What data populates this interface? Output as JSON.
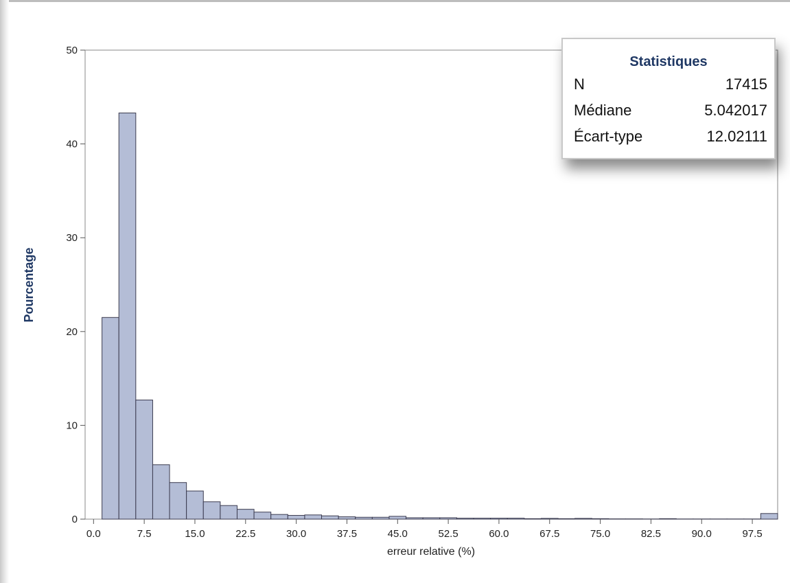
{
  "chart_data": {
    "type": "bar",
    "xlabel": "erreur relative (%)",
    "ylabel": "Pourcentage",
    "ylim": [
      0,
      50
    ],
    "xlim": [
      -1.25,
      101.25
    ],
    "yticks": [
      "0",
      "10",
      "20",
      "30",
      "40",
      "50"
    ],
    "xticks": [
      "0.0",
      "7.5",
      "15.0",
      "22.5",
      "30.0",
      "37.5",
      "45.0",
      "52.5",
      "60.0",
      "67.5",
      "75.0",
      "82.5",
      "90.0",
      "97.5"
    ],
    "bin_width": 2.5,
    "bin_centers": [
      2.5,
      5,
      7.5,
      10,
      12.5,
      15,
      17.5,
      20,
      22.5,
      25,
      27.5,
      30,
      32.5,
      35,
      37.5,
      40,
      42.5,
      45,
      47.5,
      50,
      52.5,
      55,
      57.5,
      60,
      62.5,
      65,
      67.5,
      70,
      72.5,
      75,
      77.5,
      80,
      82.5,
      85,
      87.5,
      90,
      92.5,
      95,
      97.5,
      100
    ],
    "values": [
      21.5,
      43.3,
      12.7,
      5.8,
      3.9,
      3.0,
      1.85,
      1.45,
      1.05,
      0.75,
      0.5,
      0.4,
      0.45,
      0.35,
      0.25,
      0.2,
      0.2,
      0.3,
      0.15,
      0.15,
      0.15,
      0.1,
      0.1,
      0.1,
      0.1,
      0.05,
      0.08,
      0.05,
      0.08,
      0.05,
      0.03,
      0.03,
      0.02,
      0.05,
      0.02,
      0.02,
      0.02,
      0.02,
      0.02,
      0.6
    ],
    "grid": false,
    "colors": {
      "bar_fill": "#b4bdd6",
      "bar_stroke": "#3b3b4f",
      "axis_title": "#1f3864"
    }
  },
  "statistics": {
    "title": "Statistiques",
    "rows": [
      {
        "label": "N",
        "value": "17415"
      },
      {
        "label": "Médiane",
        "value": "5.042017"
      },
      {
        "label": "Écart-type",
        "value": "12.02111"
      }
    ]
  }
}
